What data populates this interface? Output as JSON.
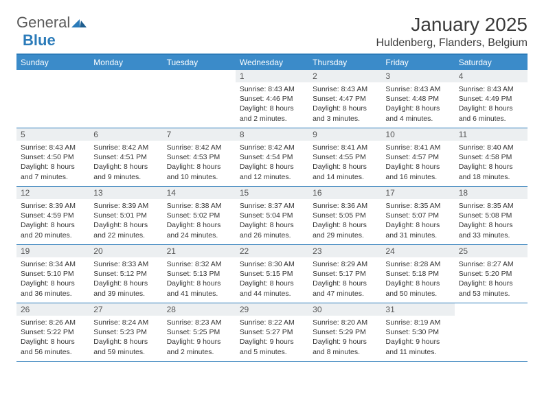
{
  "logo": {
    "text1": "General",
    "text2": "Blue"
  },
  "title": "January 2025",
  "location": "Huldenberg, Flanders, Belgium",
  "colors": {
    "header_bar": "#3b8bc9",
    "border": "#2b7bb9",
    "daynum_bg": "#eceff1",
    "text": "#333333",
    "title_text": "#3a3a3a"
  },
  "weekdays": [
    "Sunday",
    "Monday",
    "Tuesday",
    "Wednesday",
    "Thursday",
    "Friday",
    "Saturday"
  ],
  "weeks": [
    [
      {
        "n": "",
        "lines": []
      },
      {
        "n": "",
        "lines": []
      },
      {
        "n": "",
        "lines": []
      },
      {
        "n": "1",
        "lines": [
          "Sunrise: 8:43 AM",
          "Sunset: 4:46 PM",
          "Daylight: 8 hours and 2 minutes."
        ]
      },
      {
        "n": "2",
        "lines": [
          "Sunrise: 8:43 AM",
          "Sunset: 4:47 PM",
          "Daylight: 8 hours and 3 minutes."
        ]
      },
      {
        "n": "3",
        "lines": [
          "Sunrise: 8:43 AM",
          "Sunset: 4:48 PM",
          "Daylight: 8 hours and 4 minutes."
        ]
      },
      {
        "n": "4",
        "lines": [
          "Sunrise: 8:43 AM",
          "Sunset: 4:49 PM",
          "Daylight: 8 hours and 6 minutes."
        ]
      }
    ],
    [
      {
        "n": "5",
        "lines": [
          "Sunrise: 8:43 AM",
          "Sunset: 4:50 PM",
          "Daylight: 8 hours and 7 minutes."
        ]
      },
      {
        "n": "6",
        "lines": [
          "Sunrise: 8:42 AM",
          "Sunset: 4:51 PM",
          "Daylight: 8 hours and 9 minutes."
        ]
      },
      {
        "n": "7",
        "lines": [
          "Sunrise: 8:42 AM",
          "Sunset: 4:53 PM",
          "Daylight: 8 hours and 10 minutes."
        ]
      },
      {
        "n": "8",
        "lines": [
          "Sunrise: 8:42 AM",
          "Sunset: 4:54 PM",
          "Daylight: 8 hours and 12 minutes."
        ]
      },
      {
        "n": "9",
        "lines": [
          "Sunrise: 8:41 AM",
          "Sunset: 4:55 PM",
          "Daylight: 8 hours and 14 minutes."
        ]
      },
      {
        "n": "10",
        "lines": [
          "Sunrise: 8:41 AM",
          "Sunset: 4:57 PM",
          "Daylight: 8 hours and 16 minutes."
        ]
      },
      {
        "n": "11",
        "lines": [
          "Sunrise: 8:40 AM",
          "Sunset: 4:58 PM",
          "Daylight: 8 hours and 18 minutes."
        ]
      }
    ],
    [
      {
        "n": "12",
        "lines": [
          "Sunrise: 8:39 AM",
          "Sunset: 4:59 PM",
          "Daylight: 8 hours and 20 minutes."
        ]
      },
      {
        "n": "13",
        "lines": [
          "Sunrise: 8:39 AM",
          "Sunset: 5:01 PM",
          "Daylight: 8 hours and 22 minutes."
        ]
      },
      {
        "n": "14",
        "lines": [
          "Sunrise: 8:38 AM",
          "Sunset: 5:02 PM",
          "Daylight: 8 hours and 24 minutes."
        ]
      },
      {
        "n": "15",
        "lines": [
          "Sunrise: 8:37 AM",
          "Sunset: 5:04 PM",
          "Daylight: 8 hours and 26 minutes."
        ]
      },
      {
        "n": "16",
        "lines": [
          "Sunrise: 8:36 AM",
          "Sunset: 5:05 PM",
          "Daylight: 8 hours and 29 minutes."
        ]
      },
      {
        "n": "17",
        "lines": [
          "Sunrise: 8:35 AM",
          "Sunset: 5:07 PM",
          "Daylight: 8 hours and 31 minutes."
        ]
      },
      {
        "n": "18",
        "lines": [
          "Sunrise: 8:35 AM",
          "Sunset: 5:08 PM",
          "Daylight: 8 hours and 33 minutes."
        ]
      }
    ],
    [
      {
        "n": "19",
        "lines": [
          "Sunrise: 8:34 AM",
          "Sunset: 5:10 PM",
          "Daylight: 8 hours and 36 minutes."
        ]
      },
      {
        "n": "20",
        "lines": [
          "Sunrise: 8:33 AM",
          "Sunset: 5:12 PM",
          "Daylight: 8 hours and 39 minutes."
        ]
      },
      {
        "n": "21",
        "lines": [
          "Sunrise: 8:32 AM",
          "Sunset: 5:13 PM",
          "Daylight: 8 hours and 41 minutes."
        ]
      },
      {
        "n": "22",
        "lines": [
          "Sunrise: 8:30 AM",
          "Sunset: 5:15 PM",
          "Daylight: 8 hours and 44 minutes."
        ]
      },
      {
        "n": "23",
        "lines": [
          "Sunrise: 8:29 AM",
          "Sunset: 5:17 PM",
          "Daylight: 8 hours and 47 minutes."
        ]
      },
      {
        "n": "24",
        "lines": [
          "Sunrise: 8:28 AM",
          "Sunset: 5:18 PM",
          "Daylight: 8 hours and 50 minutes."
        ]
      },
      {
        "n": "25",
        "lines": [
          "Sunrise: 8:27 AM",
          "Sunset: 5:20 PM",
          "Daylight: 8 hours and 53 minutes."
        ]
      }
    ],
    [
      {
        "n": "26",
        "lines": [
          "Sunrise: 8:26 AM",
          "Sunset: 5:22 PM",
          "Daylight: 8 hours and 56 minutes."
        ]
      },
      {
        "n": "27",
        "lines": [
          "Sunrise: 8:24 AM",
          "Sunset: 5:23 PM",
          "Daylight: 8 hours and 59 minutes."
        ]
      },
      {
        "n": "28",
        "lines": [
          "Sunrise: 8:23 AM",
          "Sunset: 5:25 PM",
          "Daylight: 9 hours and 2 minutes."
        ]
      },
      {
        "n": "29",
        "lines": [
          "Sunrise: 8:22 AM",
          "Sunset: 5:27 PM",
          "Daylight: 9 hours and 5 minutes."
        ]
      },
      {
        "n": "30",
        "lines": [
          "Sunrise: 8:20 AM",
          "Sunset: 5:29 PM",
          "Daylight: 9 hours and 8 minutes."
        ]
      },
      {
        "n": "31",
        "lines": [
          "Sunrise: 8:19 AM",
          "Sunset: 5:30 PM",
          "Daylight: 9 hours and 11 minutes."
        ]
      },
      {
        "n": "",
        "lines": []
      }
    ]
  ]
}
